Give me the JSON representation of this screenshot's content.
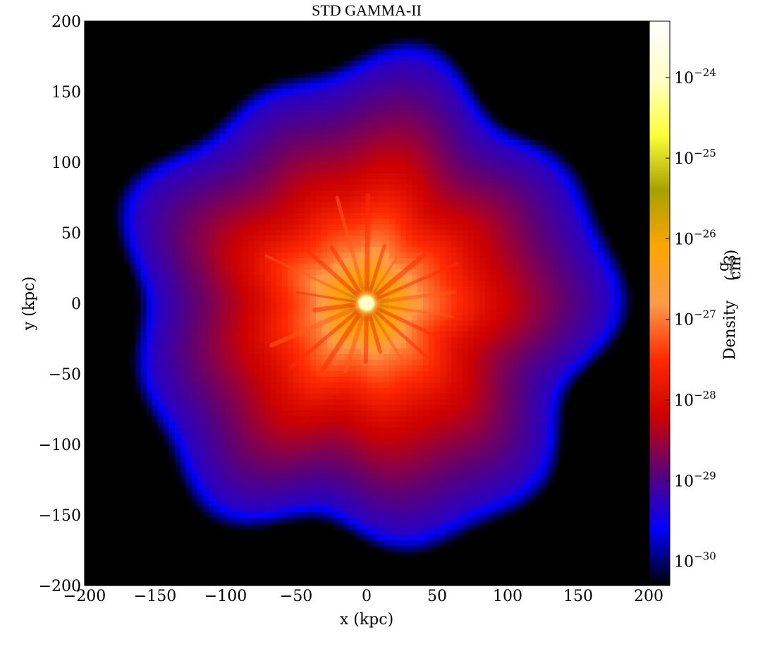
{
  "chart_data": {
    "type": "heatmap",
    "title": "STD GAMMA-II",
    "xlabel": "x  (kpc)",
    "ylabel": "y  (kpc)",
    "xlim": [
      -200,
      200
    ],
    "ylim": [
      -200,
      200
    ],
    "x_ticks": [
      -200,
      -150,
      -100,
      -50,
      0,
      50,
      100,
      150,
      200
    ],
    "y_ticks": [
      -200,
      -150,
      -100,
      -50,
      0,
      50,
      100,
      150,
      200
    ],
    "x_tick_labels": [
      "−200",
      "−150",
      "−100",
      "−50",
      "0",
      "50",
      "100",
      "150",
      "200"
    ],
    "y_tick_labels": [
      "−200",
      "−150",
      "−100",
      "−50",
      "0",
      "50",
      "100",
      "150",
      "200"
    ],
    "colorbar": {
      "label": "Density",
      "unit_numerator": "g",
      "unit_denominator": "cm",
      "unit_denominator_exponent": "3",
      "scale": "log",
      "range": [
        5e-31,
        5e-24
      ],
      "tick_exponents": [
        -30,
        -29,
        -28,
        -27,
        -26,
        -25,
        -24
      ],
      "tick_base": "10",
      "colormap": [
        "#000000",
        "#0000ff",
        "#5a0078",
        "#cc0000",
        "#ff2a00",
        "#ff9a4a",
        "#ffa500",
        "#a8a000",
        "#ffff3a",
        "#ffffc8",
        "#ffffff"
      ]
    },
    "field": {
      "center": [
        0,
        0
      ],
      "halo_outer_radius_kpc": 175,
      "core_radius_kpc": 5,
      "density_center": 5e-24,
      "density_r5_kpc": 3e-26,
      "density_r40_kpc": 1e-27,
      "density_r80_kpc": 1e-28,
      "density_r120_kpc": 2e-29,
      "density_r160_kpc": 5e-30,
      "density_background": 1e-31
    },
    "grid": false
  }
}
